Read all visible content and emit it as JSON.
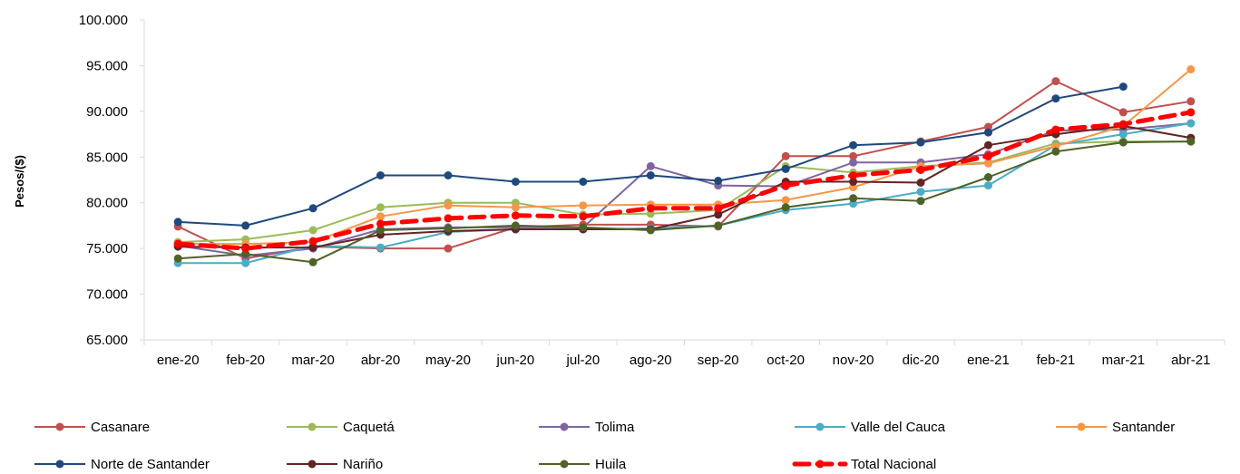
{
  "chart_data": {
    "type": "line",
    "ylabel": "Pesos/($)",
    "ylim": [
      65000,
      100000
    ],
    "yticks": [
      65000,
      70000,
      75000,
      80000,
      85000,
      90000,
      95000,
      100000
    ],
    "ytick_labels": [
      "65.000",
      "70.000",
      "75.000",
      "80.000",
      "85.000",
      "90.000",
      "95.000",
      "100.000"
    ],
    "categories": [
      "ene-20",
      "feb-20",
      "mar-20",
      "abr-20",
      "may-20",
      "jun-20",
      "jul-20",
      "ago-20",
      "sep-20",
      "oct-20",
      "nov-20",
      "dic-20",
      "ene-21",
      "feb-21",
      "mar-21",
      "abr-21"
    ],
    "grid": false,
    "legend_position": "bottom",
    "series": [
      {
        "name": "Casanare",
        "color": "#C0504D",
        "style": "solid",
        "values": [
          77400,
          73900,
          75200,
          75000,
          75000,
          77300,
          77600,
          77600,
          77400,
          85100,
          85100,
          86700,
          88300,
          93300,
          89900,
          91100
        ]
      },
      {
        "name": "Caquetá",
        "color": "#9BBB59",
        "style": "solid",
        "values": [
          75700,
          76000,
          77000,
          79500,
          80000,
          80000,
          78700,
          78800,
          79200,
          84000,
          83300,
          84000,
          84400,
          86500,
          86700,
          86700
        ]
      },
      {
        "name": "Tolima",
        "color": "#8064A2",
        "style": "solid",
        "values": [
          75300,
          74200,
          75000,
          77100,
          77300,
          77300,
          77300,
          84000,
          81900,
          81800,
          84400,
          84400,
          85300,
          87900,
          88000,
          88700
        ]
      },
      {
        "name": "Valle del Cauca",
        "color": "#4BACC6",
        "style": "solid",
        "values": [
          73400,
          73400,
          75300,
          75100,
          76800,
          77100,
          77100,
          77200,
          77500,
          79200,
          79900,
          81200,
          81900,
          86300,
          87500,
          88700
        ]
      },
      {
        "name": "Santander",
        "color": "#F79646",
        "style": "solid",
        "values": [
          75500,
          75500,
          75700,
          78500,
          79700,
          79500,
          79700,
          79800,
          79800,
          80300,
          81700,
          84000,
          84300,
          86200,
          88400,
          94600
        ]
      },
      {
        "name": "Norte de Santander",
        "color": "#1F497D",
        "style": "solid",
        "values": [
          77900,
          77500,
          79400,
          83000,
          83000,
          82300,
          82300,
          83000,
          82400,
          83700,
          86300,
          86600,
          87700,
          91400,
          92700,
          null
        ]
      },
      {
        "name": "Nariño",
        "color": "#632423",
        "style": "solid",
        "values": [
          75200,
          75100,
          75100,
          76500,
          76900,
          77100,
          77100,
          77100,
          78700,
          82300,
          82300,
          82200,
          86300,
          87500,
          88400,
          87100
        ]
      },
      {
        "name": "Huila",
        "color": "#4F6228",
        "style": "solid",
        "values": [
          73900,
          74400,
          73500,
          77000,
          77200,
          77500,
          77300,
          77000,
          77500,
          79500,
          80500,
          80200,
          82800,
          85600,
          86600,
          86700
        ]
      },
      {
        "name": "Total Nacional",
        "color": "#FF0000",
        "style": "dashed",
        "values": [
          75500,
          75000,
          75800,
          77700,
          78300,
          78600,
          78500,
          79400,
          79400,
          81900,
          83000,
          83600,
          85100,
          88000,
          88600,
          89900
        ]
      }
    ]
  }
}
